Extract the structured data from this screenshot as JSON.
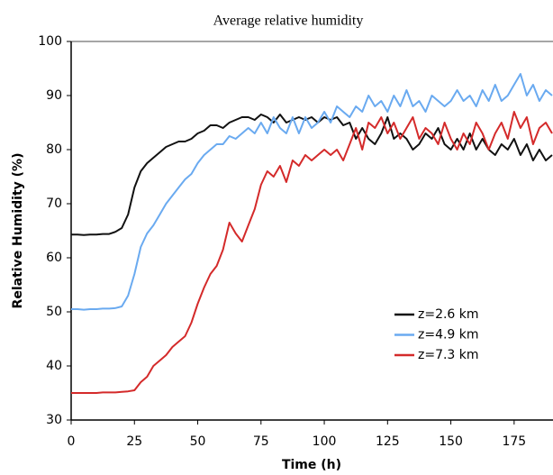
{
  "chart_data": {
    "type": "line",
    "title": "Average relative humidity",
    "x_label": "Time (h)",
    "y_label": "Relative Humidity (%)",
    "x": [
      0,
      2.5,
      5,
      7.5,
      10,
      12.5,
      15,
      17.5,
      20,
      22.5,
      25,
      27.5,
      30,
      32.5,
      35,
      37.5,
      40,
      42.5,
      45,
      47.5,
      50,
      52.5,
      55,
      57.5,
      60,
      62.5,
      65,
      67.5,
      70,
      72.5,
      75,
      77.5,
      80,
      82.5,
      85,
      87.5,
      90,
      92.5,
      95,
      97.5,
      100,
      102.5,
      105,
      107.5,
      110,
      112.5,
      115,
      117.5,
      120,
      122.5,
      125,
      127.5,
      130,
      132.5,
      135,
      137.5,
      140,
      142.5,
      145,
      147.5,
      150,
      152.5,
      155,
      157.5,
      160,
      162.5,
      165,
      167.5,
      170,
      172.5,
      175,
      177.5,
      180,
      182.5,
      185,
      187.5,
      190
    ],
    "series": [
      {
        "name": "z=2.6 km",
        "color": "#111111",
        "values": [
          64.3,
          64.3,
          64.2,
          64.3,
          64.3,
          64.4,
          64.4,
          64.8,
          65.5,
          68,
          73,
          76,
          77.5,
          78.5,
          79.5,
          80.5,
          81,
          81.5,
          81.5,
          82,
          83,
          83.5,
          84.5,
          84.5,
          84,
          85,
          85.5,
          86,
          86,
          85.5,
          86.5,
          86,
          85,
          86.5,
          85,
          85.5,
          86,
          85.5,
          86,
          85,
          86,
          85.5,
          86,
          84.5,
          85,
          82,
          84,
          82,
          81,
          83,
          86,
          82,
          83,
          82,
          80,
          81,
          83,
          82,
          84,
          81,
          80,
          82,
          80,
          83,
          80,
          82,
          80,
          79,
          81,
          80,
          82,
          79,
          81,
          78,
          80,
          78,
          79
        ]
      },
      {
        "name": "z=4.9 km",
        "color": "#6aaaf0",
        "values": [
          50.5,
          50.5,
          50.4,
          50.5,
          50.5,
          50.6,
          50.6,
          50.7,
          51,
          53,
          57,
          62,
          64.5,
          66,
          68,
          70,
          71.5,
          73,
          74.5,
          75.5,
          77.5,
          79,
          80,
          81,
          81,
          82.5,
          82,
          83,
          84,
          83,
          85,
          83,
          86,
          84,
          83,
          86,
          83,
          86,
          84,
          85,
          87,
          85,
          88,
          87,
          86,
          88,
          87,
          90,
          88,
          89,
          87,
          90,
          88,
          91,
          88,
          89,
          87,
          90,
          89,
          88,
          89,
          91,
          89,
          90,
          88,
          91,
          89,
          92,
          89,
          90,
          92,
          94,
          90,
          92,
          89,
          91,
          90
        ]
      },
      {
        "name": "z=7.3 km",
        "color": "#d42a2a",
        "values": [
          35,
          35,
          35,
          35,
          35,
          35.1,
          35.1,
          35.1,
          35.2,
          35.3,
          35.5,
          37,
          38,
          40,
          41,
          42,
          43.5,
          44.5,
          45.5,
          48,
          51.5,
          54.5,
          57,
          58.5,
          61.5,
          66.5,
          64.5,
          63,
          66,
          69,
          73.5,
          76,
          75,
          77,
          74,
          78,
          77,
          79,
          78,
          79,
          80,
          79,
          80,
          78,
          81,
          84,
          80,
          85,
          84,
          86,
          83,
          85,
          82,
          84,
          86,
          82,
          84,
          83,
          81,
          85,
          82,
          80,
          83,
          81,
          85,
          83,
          80,
          83,
          85,
          82,
          87,
          84,
          86,
          81,
          84,
          85,
          83
        ]
      }
    ],
    "xlim": [
      0,
      190
    ],
    "ylim": [
      30,
      100
    ],
    "xticks": [
      0,
      25,
      50,
      75,
      100,
      125,
      150,
      175
    ],
    "yticks": [
      30,
      40,
      50,
      60,
      70,
      80,
      90,
      100
    ],
    "grid": false,
    "legend": "lower right"
  }
}
